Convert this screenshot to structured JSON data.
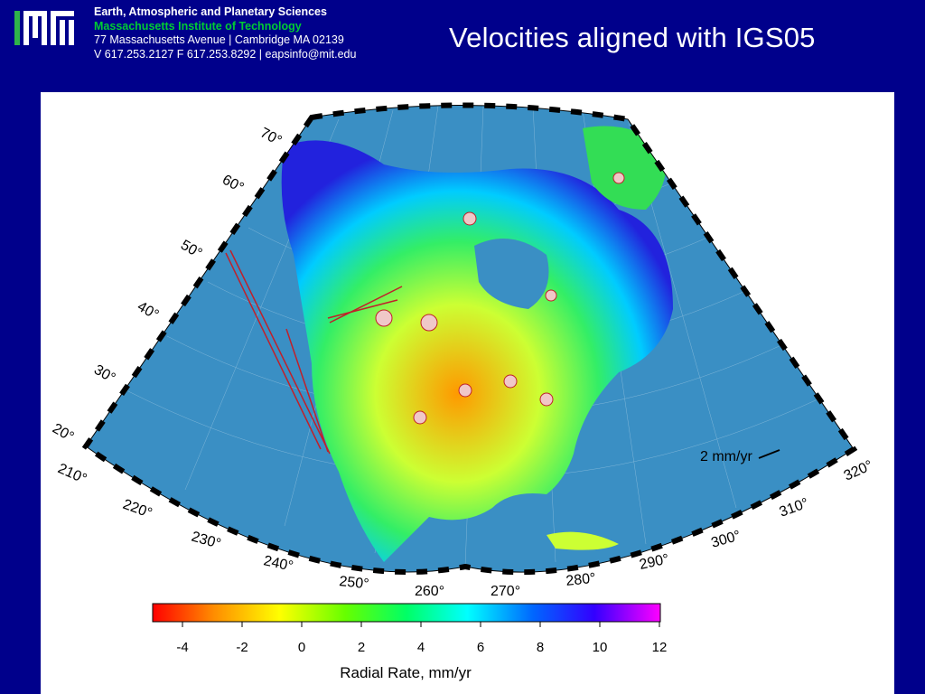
{
  "header": {
    "department": "Earth, Atmospheric and Planetary Sciences",
    "institute": "Massachusetts Institute of Technology",
    "address": "77 Massachusetts Avenue | Cambridge MA 02139",
    "contact": "V 617.253.2127 F 617.253.8292 | eapsinfo@mit.edu"
  },
  "slide": {
    "title": "Velocities aligned with IGS05"
  },
  "map": {
    "lat_labels": [
      "70°",
      "60°",
      "50°",
      "40°",
      "30°",
      "20°"
    ],
    "lon_labels": [
      "210°",
      "220°",
      "230°",
      "240°",
      "250°",
      "260°",
      "270°",
      "280°",
      "290°",
      "300°",
      "310°",
      "320°"
    ],
    "scale_label": "2 mm/yr"
  },
  "colorbar": {
    "ticks": [
      "-4",
      "-2",
      "0",
      "2",
      "4",
      "6",
      "8",
      "10",
      "12"
    ],
    "label": "Radial Rate, mm/yr"
  },
  "colors": {
    "background": "#00008b",
    "ocean": "#3a8fc4",
    "vector": "#e8201a"
  }
}
